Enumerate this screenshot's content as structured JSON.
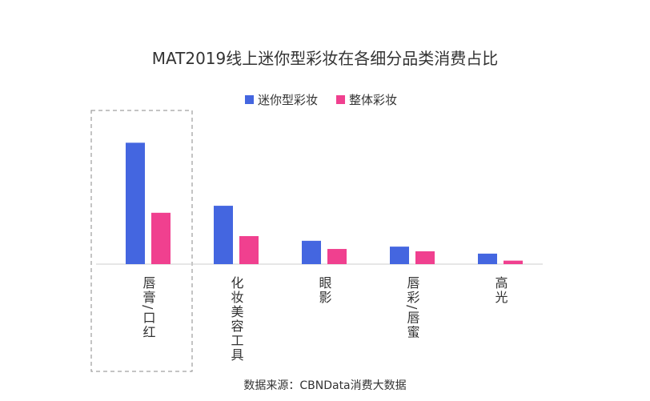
{
  "chart_data": {
    "type": "bar",
    "title": "MAT2019线上迷你型彩妆在各细分品类消费占比",
    "categories": [
      "唇膏/口红",
      "化妆美容工具",
      "眼影",
      "唇彩/唇蜜",
      "高光"
    ],
    "series": [
      {
        "name": "迷你型彩妆",
        "color": "#4466e0",
        "values": [
          52,
          25,
          10,
          7.5,
          4.5
        ]
      },
      {
        "name": "整体彩妆",
        "color": "#f0408f",
        "values": [
          22,
          12,
          6.5,
          5.5,
          1.5
        ]
      }
    ],
    "ylim": [
      0,
      60
    ],
    "source": "数据来源：CBNData消费大数据"
  }
}
